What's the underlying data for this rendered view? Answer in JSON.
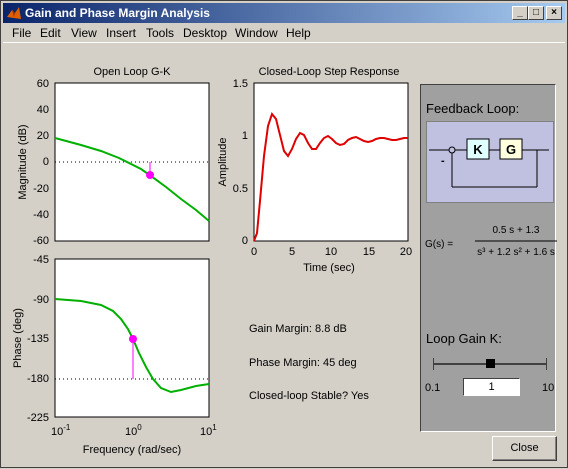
{
  "window": {
    "title": "Gain and Phase Margin Analysis",
    "min_glyph": "_",
    "max_glyph": "□",
    "close_glyph": "×"
  },
  "menu": [
    "File",
    "Edit",
    "View",
    "Insert",
    "Tools",
    "Desktop",
    "Window",
    "Help"
  ],
  "magnitude_plot": {
    "title": "Open Loop G-K",
    "ylabel": "Magnitude (dB)",
    "yticks": [
      "60",
      "40",
      "20",
      "0",
      "-20",
      "-40",
      "-60"
    ]
  },
  "phase_plot": {
    "ylabel": "Phase (deg)",
    "xlabel": "Frequency (rad/sec)",
    "yticks": [
      "-45",
      "-90",
      "-135",
      "-180",
      "-225"
    ],
    "xtick_base": "10",
    "xtick_exps": [
      "-1",
      "0",
      "1"
    ]
  },
  "step_plot": {
    "title": "Closed-Loop Step Response",
    "ylabel": "Amplitude",
    "xlabel": "Time (sec)",
    "yticks": [
      "1.5",
      "1",
      "0.5",
      "0"
    ],
    "xticks": [
      "0",
      "5",
      "10",
      "15",
      "20"
    ]
  },
  "info": {
    "gain_margin": "Gain Margin:  8.8 dB",
    "phase_margin": "Phase Margin:  45 deg",
    "stable": "Closed-loop Stable?  Yes"
  },
  "panel": {
    "heading": "Feedback Loop:",
    "block_k": "K",
    "block_g": "G",
    "minus": "-",
    "gs_label": "G(s)  =",
    "gs_num": "0.5 s + 1.3",
    "gs_den": "s³ + 1.2 s² + 1.6 s",
    "slider_label": "Loop Gain K:",
    "slider_min": "0.1",
    "slider_max": "10",
    "gain_value": "1"
  },
  "close_button": "Close",
  "colors": {
    "title_start": "#0a246a",
    "curve_green": "#00b000",
    "marker_magenta": "#ff00ff",
    "step_red": "#e00000"
  }
}
